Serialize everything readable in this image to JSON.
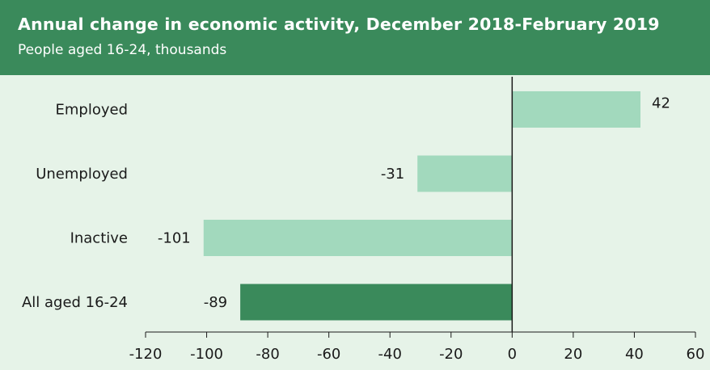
{
  "header": {
    "title": "Annual change in economic activity, December 2018-February  2019",
    "subtitle": "People aged 16-24, thousands"
  },
  "colors": {
    "header_bg": "#3a8a5b",
    "background": "#e6f3e8",
    "bar_light": "#a2d9bd",
    "bar_dark": "#3a8a5b"
  },
  "chart_data": {
    "type": "bar",
    "orientation": "horizontal",
    "title": "Annual change in economic activity, December 2018-February  2019",
    "subtitle": "People aged 16-24, thousands",
    "categories": [
      "Employed",
      "Unemployed",
      "Inactive",
      "All aged 16-24"
    ],
    "values": [
      42,
      -31,
      -101,
      -89
    ],
    "data_labels": [
      "42",
      "-31",
      "-101",
      "-89"
    ],
    "bar_colors": [
      "#a2d9bd",
      "#a2d9bd",
      "#a2d9bd",
      "#3a8a5b"
    ],
    "xlim": [
      -120,
      60
    ],
    "xticks": [
      -120,
      -100,
      -80,
      -60,
      -40,
      -20,
      0,
      20,
      40,
      60
    ],
    "xtick_labels": [
      "-120",
      "-100",
      "-80",
      "-60",
      "-40",
      "-20",
      "0",
      "20",
      "40",
      "60"
    ],
    "grid": false,
    "legend": "none"
  }
}
